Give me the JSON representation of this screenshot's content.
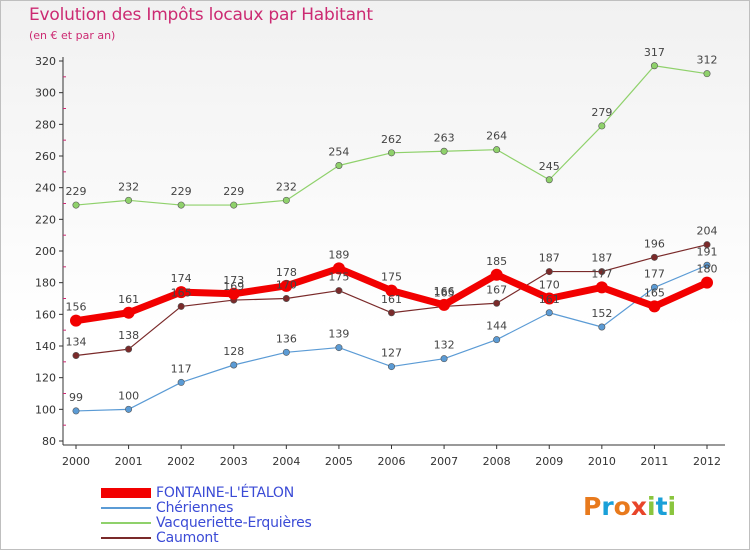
{
  "header": {
    "title": "Evolution des Impôts locaux par Habitant",
    "subtitle": "(en € et par an)"
  },
  "logo": {
    "text": "Proxiti",
    "letters": [
      "P",
      "r",
      "o",
      "x",
      "i",
      "t",
      "i"
    ],
    "colors": [
      "#e87a1d",
      "#1aa0d8",
      "#e87a1d",
      "#e8452a",
      "#8ac53e",
      "#1aa0d8",
      "#8ac53e"
    ]
  },
  "chart_data": {
    "type": "line",
    "title": "Evolution des Impôts locaux par Habitant",
    "subtitle": "(en € et par an)",
    "xlabel": "",
    "ylabel": "",
    "x": [
      "2000",
      "2001",
      "2002",
      "2003",
      "2004",
      "2005",
      "2006",
      "2007",
      "2008",
      "2009",
      "2010",
      "2011",
      "2012"
    ],
    "ylim": [
      80,
      320
    ],
    "yticks": [
      80,
      100,
      120,
      140,
      160,
      180,
      200,
      220,
      240,
      260,
      280,
      300,
      320
    ],
    "grid": "none",
    "legend_position": "bottom-left",
    "series": [
      {
        "name": "FONTAINE-L'ÉTALON",
        "color": "#f20000",
        "values": [
          156,
          161,
          174,
          173,
          178,
          189,
          175,
          166,
          185,
          170,
          177,
          165,
          180
        ],
        "labels": [
          "156",
          "161",
          "174",
          "173",
          "178",
          "189",
          "175",
          "166",
          "185",
          "170",
          "177",
          "165",
          "180"
        ]
      },
      {
        "name": "Chériennes",
        "color": "#5b9bd5",
        "values": [
          99,
          100,
          117,
          128,
          136,
          139,
          127,
          132,
          144,
          161,
          152,
          177,
          191
        ],
        "labels": [
          "99",
          "100",
          "117",
          "128",
          "136",
          "139",
          "127",
          "132",
          "144",
          "161",
          "152",
          "177",
          "191"
        ]
      },
      {
        "name": "Vacqueriette-Erquières",
        "color": "#8fd16b",
        "values": [
          229,
          232,
          229,
          229,
          232,
          254,
          262,
          263,
          264,
          245,
          279,
          317,
          312
        ],
        "labels": [
          "229",
          "232",
          "229",
          "229",
          "232",
          "254",
          "262",
          "263",
          "264",
          "245",
          "279",
          "317",
          "312"
        ]
      },
      {
        "name": "Caumont",
        "color": "#7a2a2a",
        "values": [
          134,
          138,
          165,
          169,
          170,
          175,
          161,
          165,
          167,
          187,
          187,
          196,
          204
        ],
        "labels": [
          "134",
          "138",
          "165",
          "169",
          "170",
          "175",
          "161",
          "165",
          "167",
          "187",
          "187",
          "196",
          "204"
        ]
      }
    ]
  }
}
